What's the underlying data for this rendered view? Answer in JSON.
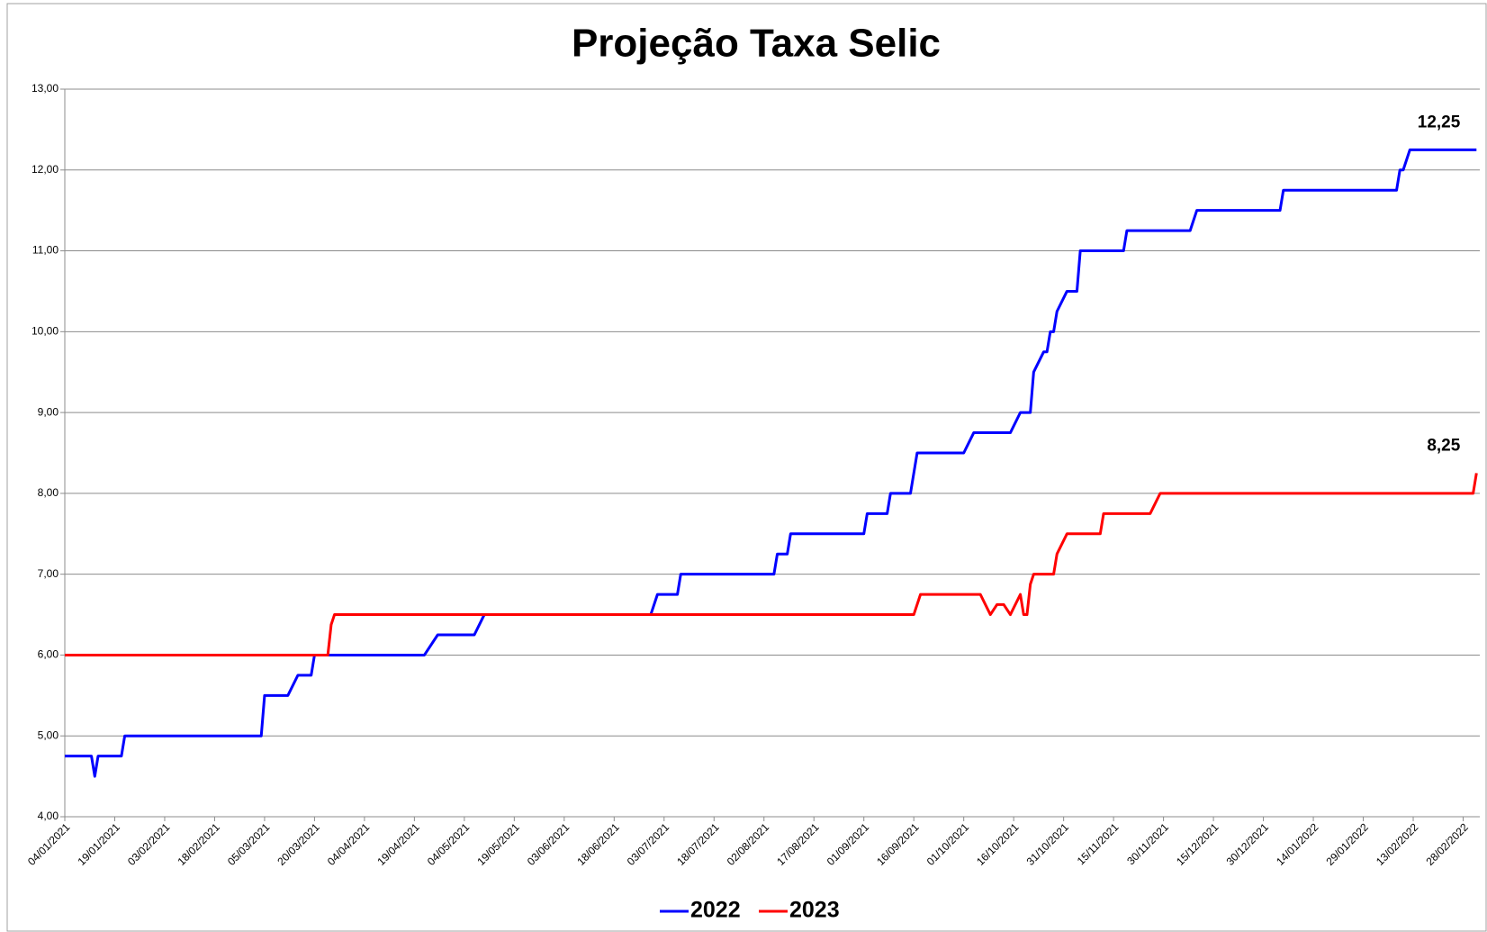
{
  "chart_data": {
    "type": "line",
    "title": "Projeção Taxa Selic",
    "xlim": [
      "04/01/2021",
      "05/03/2022"
    ],
    "xticks": [
      "04/01/2021",
      "19/01/2021",
      "03/02/2021",
      "18/02/2021",
      "05/03/2021",
      "20/03/2021",
      "04/04/2021",
      "19/04/2021",
      "04/05/2021",
      "19/05/2021",
      "03/06/2021",
      "18/06/2021",
      "03/07/2021",
      "18/07/2021",
      "02/08/2021",
      "17/08/2021",
      "01/09/2021",
      "16/09/2021",
      "01/10/2021",
      "16/10/2021",
      "31/10/2021",
      "15/11/2021",
      "30/11/2021",
      "15/12/2021",
      "30/12/2021",
      "14/01/2022",
      "29/01/2022",
      "13/02/2022",
      "28/02/2022"
    ],
    "ylim": [
      4,
      13
    ],
    "yticks": [
      {
        "value": 4,
        "label": "4,00"
      },
      {
        "value": 5,
        "label": "5,00"
      },
      {
        "value": 6,
        "label": "6,00"
      },
      {
        "value": 7,
        "label": "7,00"
      },
      {
        "value": 8,
        "label": "8,00"
      },
      {
        "value": 9,
        "label": "9,00"
      },
      {
        "value": 10,
        "label": "10,00"
      },
      {
        "value": 11,
        "label": "11,00"
      },
      {
        "value": 12,
        "label": "12,00"
      },
      {
        "value": 13,
        "label": "13,00"
      }
    ],
    "grid": true,
    "legend": "bottom",
    "series": [
      {
        "name": "2022",
        "color": "#0000ff",
        "x": [
          "04/01/2021",
          "12/01/2021",
          "13/01/2021",
          "14/01/2021",
          "21/01/2021",
          "22/01/2021",
          "04/03/2021",
          "05/03/2021",
          "12/03/2021",
          "15/03/2021",
          "19/03/2021",
          "20/03/2021",
          "22/04/2021",
          "26/04/2021",
          "07/05/2021",
          "10/05/2021",
          "29/06/2021",
          "01/07/2021",
          "07/07/2021",
          "08/07/2021",
          "05/08/2021",
          "06/08/2021",
          "09/08/2021",
          "10/08/2021",
          "01/09/2021",
          "02/09/2021",
          "08/09/2021",
          "09/09/2021",
          "15/09/2021",
          "17/09/2021",
          "01/10/2021",
          "04/10/2021",
          "15/10/2021",
          "18/10/2021",
          "21/10/2021",
          "22/10/2021",
          "25/10/2021",
          "26/10/2021",
          "27/10/2021",
          "28/10/2021",
          "29/10/2021",
          "01/11/2021",
          "04/11/2021",
          "05/11/2021",
          "18/11/2021",
          "19/11/2021",
          "08/12/2021",
          "10/12/2021",
          "04/01/2022",
          "05/01/2022",
          "08/02/2022",
          "09/02/2022",
          "10/02/2022",
          "12/02/2022",
          "04/03/2022"
        ],
        "values": [
          4.75,
          4.75,
          4.5,
          4.75,
          4.75,
          5.0,
          5.0,
          5.5,
          5.5,
          5.75,
          5.75,
          6.0,
          6.0,
          6.25,
          6.25,
          6.5,
          6.5,
          6.75,
          6.75,
          7.0,
          7.0,
          7.25,
          7.25,
          7.5,
          7.5,
          7.75,
          7.75,
          8.0,
          8.0,
          8.5,
          8.5,
          8.75,
          8.75,
          9.0,
          9.0,
          9.5,
          9.75,
          9.75,
          10.0,
          10.0,
          10.25,
          10.5,
          10.5,
          11.0,
          11.0,
          11.25,
          11.25,
          11.5,
          11.5,
          11.75,
          11.75,
          12.0,
          12.0,
          12.25,
          12.25
        ]
      },
      {
        "name": "2023",
        "color": "#ff0000",
        "x": [
          "04/01/2021",
          "24/03/2021",
          "25/03/2021",
          "26/03/2021",
          "16/09/2021",
          "18/09/2021",
          "06/10/2021",
          "09/10/2021",
          "11/10/2021",
          "13/10/2021",
          "15/10/2021",
          "18/10/2021",
          "19/10/2021",
          "20/10/2021",
          "21/10/2021",
          "22/10/2021",
          "28/10/2021",
          "29/10/2021",
          "01/11/2021",
          "11/11/2021",
          "12/11/2021",
          "26/11/2021",
          "29/11/2021",
          "03/03/2022",
          "04/03/2022"
        ],
        "values": [
          6.0,
          6.0,
          6.375,
          6.5,
          6.5,
          6.75,
          6.75,
          6.5,
          6.625,
          6.625,
          6.5,
          6.75,
          6.5,
          6.5,
          6.875,
          7.0,
          7.0,
          7.25,
          7.5,
          7.5,
          7.75,
          7.75,
          8.0,
          8.0,
          8.25
        ]
      }
    ],
    "annotations": [
      {
        "text": "12,25",
        "x": "04/03/2022",
        "y": 12.25,
        "color": "#002060"
      },
      {
        "text": "8,25",
        "x": "04/03/2022",
        "y": 8.25,
        "color": "#ff0000"
      }
    ]
  }
}
